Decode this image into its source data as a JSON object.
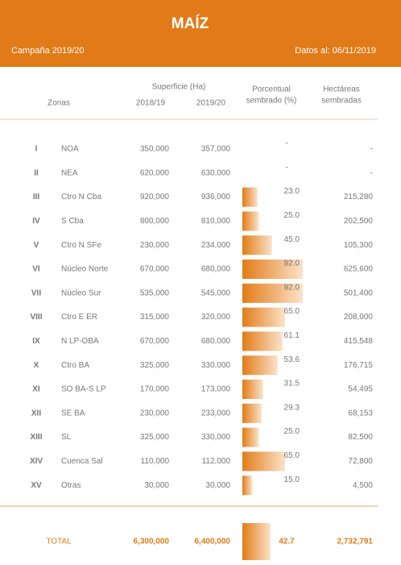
{
  "header": {
    "title": "MAÍZ",
    "campaign": "Campaña 2019/20",
    "date": "Datos al: 06/11/2019"
  },
  "columns": {
    "zones": "Zonas",
    "surface": "Superficie (Ha)",
    "year1": "2018/19",
    "year2": "2019/20",
    "percent": [
      "Porcentual",
      "sembrado (%)"
    ],
    "hectares": [
      "Hectáreas",
      "sembradas"
    ]
  },
  "rows": [
    [
      "I",
      "NOA",
      "350,000",
      "357,000",
      "-",
      "-"
    ],
    [
      "II",
      "NEA",
      "620,000",
      "630,000",
      "-",
      "-"
    ],
    [
      "III",
      "Ctro N Cba",
      "920,000",
      "936,000",
      "23.0",
      "215,280"
    ],
    [
      "IV",
      "S Cba",
      "800,000",
      "810,000",
      "25.0",
      "202,500"
    ],
    [
      "V",
      "Ctro N SFe",
      "230,000",
      "234,000",
      "45.0",
      "105,300"
    ],
    [
      "VI",
      "Núcleo Norte",
      "670,000",
      "680,000",
      "92.0",
      "625,600"
    ],
    [
      "VII",
      "Núcleo Sur",
      "535,000",
      "545,000",
      "92.0",
      "501,400"
    ],
    [
      "VIII",
      "Ctro E ER",
      "315,000",
      "320,000",
      "65.0",
      "208,000"
    ],
    [
      "IX",
      "N LP-OBA",
      "670,000",
      "680,000",
      "61.1",
      "415,548"
    ],
    [
      "X",
      "Ctro BA",
      "325,000",
      "330,000",
      "53.6",
      "176,715"
    ],
    [
      "XI",
      "SO BA-S LP",
      "170,000",
      "173,000",
      "31.5",
      "54,495"
    ],
    [
      "XII",
      "SE BA",
      "230,000",
      "233,000",
      "29.3",
      "68,153"
    ],
    [
      "XIII",
      "SL",
      "325,000",
      "330,000",
      "25.0",
      "82,500"
    ],
    [
      "XIV",
      "Cuenca Sal",
      "110,000",
      "112,000",
      "65.0",
      "72,800"
    ],
    [
      "XV",
      "Otras",
      "30,000",
      "30,000",
      "15.0",
      "4,500"
    ]
  ],
  "total": {
    "label": "TOTAL",
    "year1": "6,300,000",
    "year2": "6,400,000",
    "percent": "42.7",
    "hectares": "2,732,791"
  }
}
